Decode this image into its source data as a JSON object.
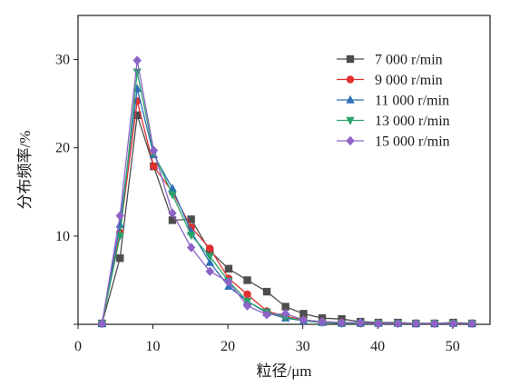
{
  "chart_data": {
    "type": "line",
    "xlabel": "粒径/μm",
    "ylabel": "分布频率/%",
    "xlim": [
      0,
      55
    ],
    "ylim": [
      0,
      35
    ],
    "xticks": [
      0,
      10,
      20,
      30,
      40,
      50
    ],
    "yticks": [
      10,
      20,
      30
    ],
    "legend_position": "top-right",
    "grid": false,
    "x": [
      3.2,
      5.6,
      7.9,
      10.1,
      12.6,
      15.1,
      17.6,
      20.1,
      22.6,
      25.2,
      27.7,
      30.1,
      32.6,
      35.2,
      37.7,
      40.1,
      42.7,
      45.1,
      47.6,
      50.1,
      52.6
    ],
    "series": [
      {
        "name": "7 000 r/min",
        "color": "#4d4d4d",
        "marker": "square",
        "values": [
          0.1,
          7.5,
          23.7,
          17.9,
          11.8,
          11.9,
          8.3,
          6.3,
          5.0,
          3.7,
          2.0,
          1.2,
          0.7,
          0.6,
          0.3,
          0.2,
          0.2,
          0.1,
          0.1,
          0.2,
          0.1
        ]
      },
      {
        "name": "9 000 r/min",
        "color": "#e03030",
        "marker": "circle",
        "values": [
          0.1,
          10.4,
          25.3,
          17.9,
          15.0,
          11.0,
          8.6,
          5.2,
          3.4,
          1.5,
          0.9,
          0.5,
          0.3,
          0.2,
          0.1,
          0.1,
          0.1,
          0.1,
          0.1,
          0.1,
          0.1
        ]
      },
      {
        "name": "11 000 r/min",
        "color": "#2e6fb7",
        "marker": "triangle-up",
        "values": [
          0.1,
          11.3,
          26.7,
          19.2,
          15.4,
          10.5,
          7.0,
          4.3,
          2.6,
          1.3,
          0.7,
          0.4,
          0.2,
          0.1,
          0.1,
          0.1,
          0.1,
          0.1,
          0.1,
          0.1,
          0.1
        ]
      },
      {
        "name": "13 000 r/min",
        "color": "#2aa36a",
        "marker": "triangle-down",
        "values": [
          0.1,
          10.0,
          28.6,
          19.4,
          14.7,
          10.1,
          7.7,
          4.9,
          2.6,
          1.4,
          0.8,
          0.4,
          0.2,
          0.1,
          0.1,
          0.1,
          0.1,
          0.1,
          0.1,
          0.1,
          0.1
        ]
      },
      {
        "name": "15 000 r/min",
        "color": "#8e63c8",
        "marker": "diamond",
        "values": [
          0.1,
          12.3,
          29.9,
          19.7,
          12.6,
          8.7,
          6.0,
          4.8,
          2.1,
          1.1,
          1.2,
          0.5,
          0.3,
          0.2,
          0.2,
          0.1,
          0.1,
          0.1,
          0.1,
          0.1,
          0.1
        ]
      }
    ]
  }
}
